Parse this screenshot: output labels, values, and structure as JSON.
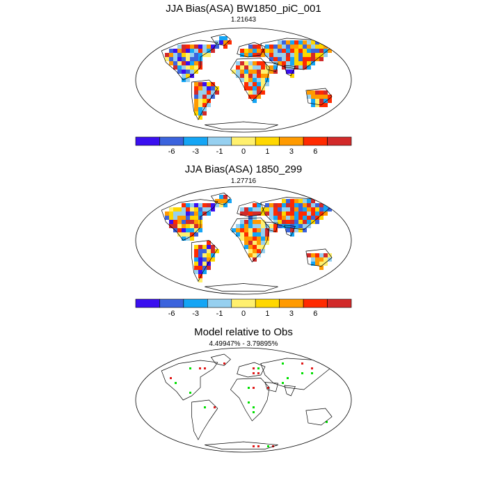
{
  "panels": [
    {
      "title": "JJA Bias(ASA) BW1850_piC_001",
      "subtitle": "1.21643",
      "kind": "bias",
      "has_colorbar": true
    },
    {
      "title": "JJA Bias(ASA) 1850_299",
      "subtitle": "1.27716",
      "kind": "bias",
      "has_colorbar": true
    },
    {
      "title": "Model relative to Obs",
      "subtitle": "4.49947% - 3.79895%",
      "kind": "relative",
      "has_colorbar": false
    }
  ],
  "colorbar": {
    "tick_labels": [
      "-6",
      "-3",
      "-1",
      "0",
      "1",
      "3",
      "6"
    ],
    "colors": [
      "#3a0ff0",
      "#3b63dd",
      "#14a5f5",
      "#96d0f0",
      "#fff06e",
      "#ffd700",
      "#ff9a00",
      "#ff2a00",
      "#d22a2a"
    ]
  },
  "map_colors": {
    "relative_better": "#00e000",
    "relative_worse": "#e01a1a"
  },
  "chart_data": {
    "type": "map",
    "projection": "Robinson (global)",
    "season": "JJA",
    "maps": [
      {
        "title": "JJA Bias(ASA) BW1850_piC_001",
        "value": 1.21643
      },
      {
        "title": "JJA Bias(ASA) 1850_299",
        "value": 1.27716
      },
      {
        "title": "Model relative to Obs",
        "values_percent": [
          4.49947,
          3.79895
        ]
      }
    ],
    "colorbar_levels": [
      -6,
      -3,
      -1,
      0,
      1,
      3,
      6
    ]
  }
}
